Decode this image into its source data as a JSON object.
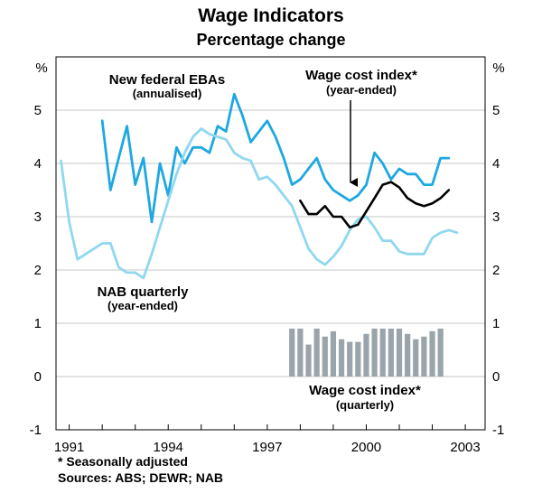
{
  "header": {
    "title": "Wage Indicators",
    "subtitle": "Percentage change"
  },
  "footnotes": {
    "seasonal": "*    Seasonally adjusted",
    "sources": "Sources: ABS; DEWR; NAB"
  },
  "chart_data": {
    "type": "line",
    "title": "Wage Indicators",
    "subtitle": "Percentage change",
    "ylabel_left": "%",
    "ylabel_right": "%",
    "ylim": [
      -1,
      6
    ],
    "xlim": [
      1990.6,
      2003.6
    ],
    "yticks": [
      -1,
      0,
      1,
      2,
      3,
      4,
      5
    ],
    "ytick_labels": [
      "-1",
      "0",
      "1",
      "2",
      "3",
      "4",
      "5"
    ],
    "xticks": [
      1991,
      1994,
      1997,
      2000,
      2003
    ],
    "xtick_labels": [
      "1991",
      "1994",
      "1997",
      "2000",
      "2003"
    ],
    "colors": {
      "ebas": "#1ea8e1",
      "nab": "#8fd8ef",
      "wci": "#000000",
      "bars": "#9aa4ab"
    },
    "annotations": {
      "ebas_main": "New federal EBAs",
      "ebas_sub": "(annualised)",
      "wci_main": "Wage cost index*",
      "wci_sub": "(year-ended)",
      "nab_main": "NAB quarterly",
      "nab_sub": "(year-ended)",
      "wciq_main": "Wage cost index*",
      "wciq_sub": "(quarterly)"
    },
    "series": [
      {
        "name": "New federal EBAs (annualised)",
        "style": "line",
        "color": "#1ea8e1",
        "x": [
          1992.0,
          1992.25,
          1992.5,
          1992.75,
          1993.0,
          1993.25,
          1993.5,
          1993.75,
          1994.0,
          1994.25,
          1994.5,
          1994.75,
          1995.0,
          1995.25,
          1995.5,
          1995.75,
          1996.0,
          1996.25,
          1996.5,
          1996.75,
          1997.0,
          1997.25,
          1997.5,
          1997.75,
          1998.0,
          1998.25,
          1998.5,
          1998.75,
          1999.0,
          1999.25,
          1999.5,
          1999.75,
          2000.0,
          2000.25,
          2000.5,
          2000.75,
          2001.0,
          2001.25,
          2001.5,
          2001.75,
          2002.0,
          2002.25,
          2002.5
        ],
        "values": [
          4.8,
          3.5,
          4.1,
          4.7,
          3.6,
          4.1,
          2.9,
          4.0,
          3.4,
          4.3,
          4.0,
          4.3,
          4.3,
          4.2,
          4.7,
          4.6,
          5.3,
          4.9,
          4.4,
          4.6,
          4.8,
          4.5,
          4.1,
          3.6,
          3.7,
          3.9,
          4.1,
          3.7,
          3.5,
          3.4,
          3.3,
          3.4,
          3.6,
          4.2,
          4.0,
          3.7,
          3.9,
          3.8,
          3.8,
          3.6,
          3.6,
          4.1,
          4.1
        ]
      },
      {
        "name": "NAB quarterly (year-ended)",
        "style": "line",
        "color": "#8fd8ef",
        "x": [
          1990.75,
          1991.0,
          1991.25,
          1991.5,
          1991.75,
          1992.0,
          1992.25,
          1992.5,
          1992.75,
          1993.0,
          1993.25,
          1993.5,
          1993.75,
          1994.0,
          1994.25,
          1994.5,
          1994.75,
          1995.0,
          1995.25,
          1995.5,
          1995.75,
          1996.0,
          1996.25,
          1996.5,
          1996.75,
          1997.0,
          1997.25,
          1997.5,
          1997.75,
          1998.0,
          1998.25,
          1998.5,
          1998.75,
          1999.0,
          1999.25,
          1999.5,
          1999.75,
          2000.0,
          2000.25,
          2000.5,
          2000.75,
          2001.0,
          2001.25,
          2001.5,
          2001.75,
          2002.0,
          2002.25,
          2002.5,
          2002.75
        ],
        "values": [
          4.05,
          2.9,
          2.2,
          2.3,
          2.4,
          2.5,
          2.5,
          2.05,
          1.95,
          1.95,
          1.85,
          2.3,
          2.8,
          3.3,
          3.8,
          4.2,
          4.5,
          4.65,
          4.55,
          4.5,
          4.45,
          4.2,
          4.1,
          4.05,
          3.7,
          3.75,
          3.6,
          3.4,
          3.2,
          2.8,
          2.4,
          2.2,
          2.1,
          2.25,
          2.45,
          2.75,
          2.95,
          3.0,
          2.8,
          2.55,
          2.55,
          2.35,
          2.3,
          2.3,
          2.3,
          2.6,
          2.7,
          2.75,
          2.7
        ]
      },
      {
        "name": "Wage cost index* (year-ended)",
        "style": "line",
        "color": "#000000",
        "x": [
          1998.0,
          1998.25,
          1998.5,
          1998.75,
          1999.0,
          1999.25,
          1999.5,
          1999.75,
          2000.0,
          2000.25,
          2000.5,
          2000.75,
          2001.0,
          2001.25,
          2001.5,
          2001.75,
          2002.0,
          2002.25,
          2002.5
        ],
        "values": [
          3.3,
          3.05,
          3.05,
          3.2,
          3.0,
          3.0,
          2.8,
          2.85,
          3.1,
          3.35,
          3.6,
          3.65,
          3.55,
          3.35,
          3.25,
          3.2,
          3.25,
          3.35,
          3.5
        ]
      },
      {
        "name": "Wage cost index* (quarterly)",
        "style": "bar",
        "color": "#9aa4ab",
        "x": [
          1997.75,
          1998.0,
          1998.25,
          1998.5,
          1998.75,
          1999.0,
          1999.25,
          1999.5,
          1999.75,
          2000.0,
          2000.25,
          2000.5,
          2000.75,
          2001.0,
          2001.25,
          2001.5,
          2001.75,
          2002.0,
          2002.25
        ],
        "values": [
          0.9,
          0.9,
          0.6,
          0.9,
          0.75,
          0.85,
          0.7,
          0.65,
          0.65,
          0.8,
          0.9,
          0.9,
          0.9,
          0.9,
          0.8,
          0.7,
          0.75,
          0.85,
          0.9
        ]
      }
    ]
  }
}
